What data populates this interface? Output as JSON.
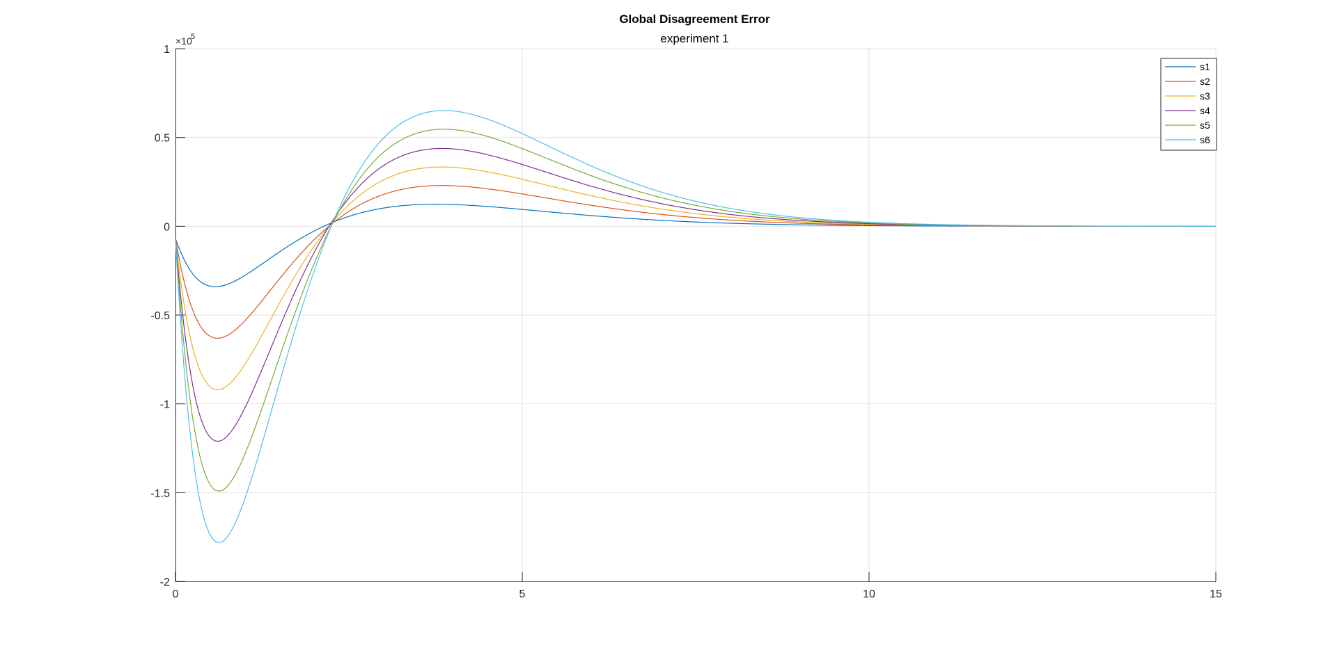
{
  "chart_data": {
    "type": "line",
    "title": "Global Disagreement Error",
    "subtitle": "experiment 1",
    "xlabel": "",
    "ylabel": "",
    "xlim": [
      0,
      15
    ],
    "ylim": [
      -2,
      1
    ],
    "y_exponent_label": "×10",
    "y_exponent_power": "5",
    "x_ticks": [
      0,
      5,
      10,
      15
    ],
    "x_tick_labels": [
      "0",
      "5",
      "10",
      "15"
    ],
    "y_ticks": [
      -2,
      -1.5,
      -1,
      -0.5,
      0,
      0.5,
      1
    ],
    "y_tick_labels": [
      "-2",
      "-1.5",
      "-1",
      "-0.5",
      "0",
      "0.5",
      "1"
    ],
    "grid": true,
    "legend_position": "top-right",
    "series": [
      {
        "name": "s1",
        "color": "#0072BD",
        "amplitude": 1,
        "points": [
          [
            0,
            -0.07
          ],
          [
            0.6,
            -0.34
          ],
          [
            2.05,
            0.02
          ],
          [
            3.4,
            0.12
          ],
          [
            5,
            0.08
          ],
          [
            10,
            0.005
          ],
          [
            15,
            0
          ]
        ]
      },
      {
        "name": "s2",
        "color": "#D95319",
        "amplitude": 2,
        "points": [
          [
            0,
            -0.07
          ],
          [
            0.63,
            -0.63
          ],
          [
            2.05,
            0.02
          ],
          [
            3.45,
            0.22
          ],
          [
            5,
            0.15
          ],
          [
            10,
            0.01
          ],
          [
            15,
            0
          ]
        ]
      },
      {
        "name": "s3",
        "color": "#EDB120",
        "amplitude": 3,
        "points": [
          [
            0,
            -0.07
          ],
          [
            0.63,
            -0.92
          ],
          [
            2.05,
            0.02
          ],
          [
            3.45,
            0.32
          ],
          [
            5,
            0.21
          ],
          [
            10,
            0.012
          ],
          [
            15,
            0
          ]
        ]
      },
      {
        "name": "s4",
        "color": "#7E2F8E",
        "amplitude": 4,
        "points": [
          [
            0,
            -0.07
          ],
          [
            0.63,
            -1.21
          ],
          [
            2.05,
            0.02
          ],
          [
            3.45,
            0.42
          ],
          [
            5,
            0.28
          ],
          [
            10,
            0.015
          ],
          [
            15,
            0
          ]
        ]
      },
      {
        "name": "s5",
        "color": "#77AC30",
        "amplitude": 5,
        "points": [
          [
            0,
            -0.07
          ],
          [
            0.65,
            -1.49
          ],
          [
            2.05,
            0.02
          ],
          [
            3.45,
            0.52
          ],
          [
            5,
            0.35
          ],
          [
            10,
            0.018
          ],
          [
            15,
            0
          ]
        ]
      },
      {
        "name": "s6",
        "color": "#4DBEEE",
        "amplitude": 6,
        "points": [
          [
            0,
            -0.07
          ],
          [
            0.65,
            -1.78
          ],
          [
            2.05,
            0.02
          ],
          [
            3.45,
            0.62
          ],
          [
            5,
            0.41
          ],
          [
            10,
            0.02
          ],
          [
            15,
            0
          ]
        ]
      }
    ]
  }
}
